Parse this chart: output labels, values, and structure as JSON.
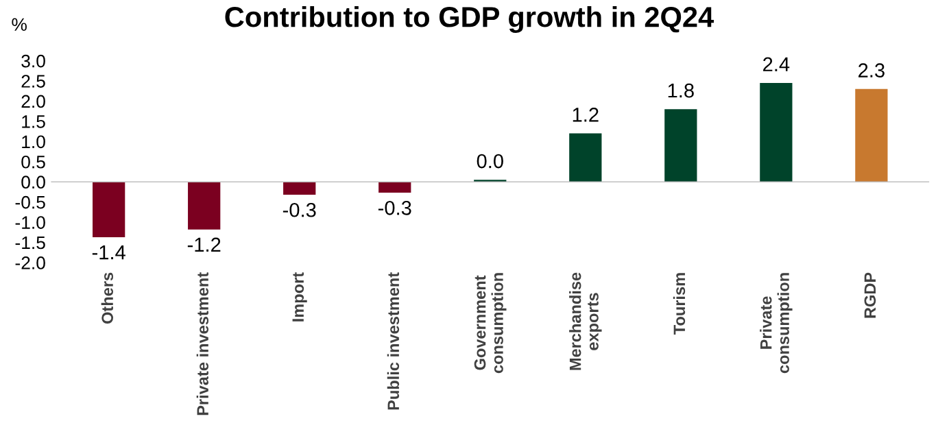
{
  "chart_data": {
    "type": "bar",
    "title": "Contribution to GDP growth in 2Q24",
    "ylabel": "%",
    "categories": [
      "Others",
      "Private investment",
      "Import",
      "Public investment",
      "Government\nconsumption",
      "Merchandise\nexports",
      "Tourism",
      "Private\nconsumption",
      "RGDP"
    ],
    "values": [
      -1.37,
      -1.18,
      -0.32,
      -0.27,
      0.05,
      1.2,
      1.8,
      2.45,
      2.3
    ],
    "value_labels": [
      "-1.4",
      "-1.2",
      "-0.3",
      "-0.3",
      "0.0",
      "1.2",
      "1.8",
      "2.4",
      "2.3"
    ],
    "colors": [
      "#7b0020",
      "#7b0020",
      "#7b0020",
      "#7b0020",
      "#00432a",
      "#00432a",
      "#00432a",
      "#00432a",
      "#c8792f"
    ],
    "ylim": [
      -2,
      3
    ],
    "yticks": [
      {
        "value": -2,
        "label": "-2.0"
      },
      {
        "value": -1.5,
        "label": "-1.5"
      },
      {
        "value": -1,
        "label": "-1.0"
      },
      {
        "value": -0.5,
        "label": "-0.5"
      },
      {
        "value": 0,
        "label": "0.0"
      },
      {
        "value": 0.5,
        "label": "0.5"
      },
      {
        "value": 1,
        "label": "1.0"
      },
      {
        "value": 1.5,
        "label": "1.5"
      },
      {
        "value": 2,
        "label": "2.0"
      },
      {
        "value": 2.5,
        "label": "2.5"
      },
      {
        "value": 3,
        "label": "3.0"
      }
    ],
    "legend": false
  }
}
